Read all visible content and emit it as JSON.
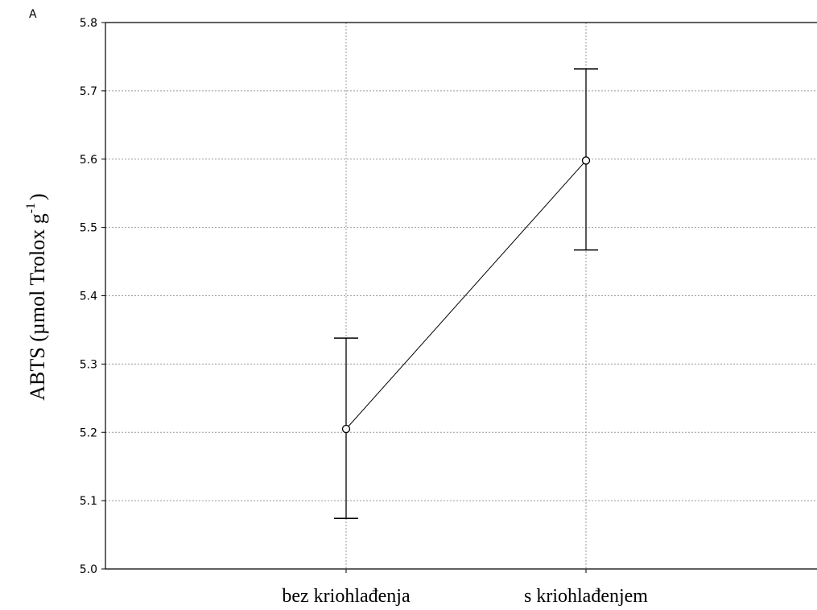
{
  "chart_data": {
    "type": "line",
    "panel_label": "A",
    "ylabel": {
      "main": "ABTS (µmol Trolox g",
      "superscript": "-1",
      "closing": ")"
    },
    "ylim": [
      5.0,
      5.8
    ],
    "yticks": [
      "5.0",
      "5.1",
      "5.2",
      "5.3",
      "5.4",
      "5.5",
      "5.6",
      "5.7",
      "5.8"
    ],
    "categories": [
      "bez kriohlađenja",
      "s kriohlađenjem"
    ],
    "series": [
      {
        "values": [
          5.205,
          5.598
        ],
        "error_low": [
          5.074,
          5.467
        ],
        "error_high": [
          5.338,
          5.732
        ]
      }
    ],
    "grid": true,
    "colors": {
      "line": "#000000",
      "grid": "#9a9a9a",
      "marker_fill": "#ffffff"
    }
  }
}
